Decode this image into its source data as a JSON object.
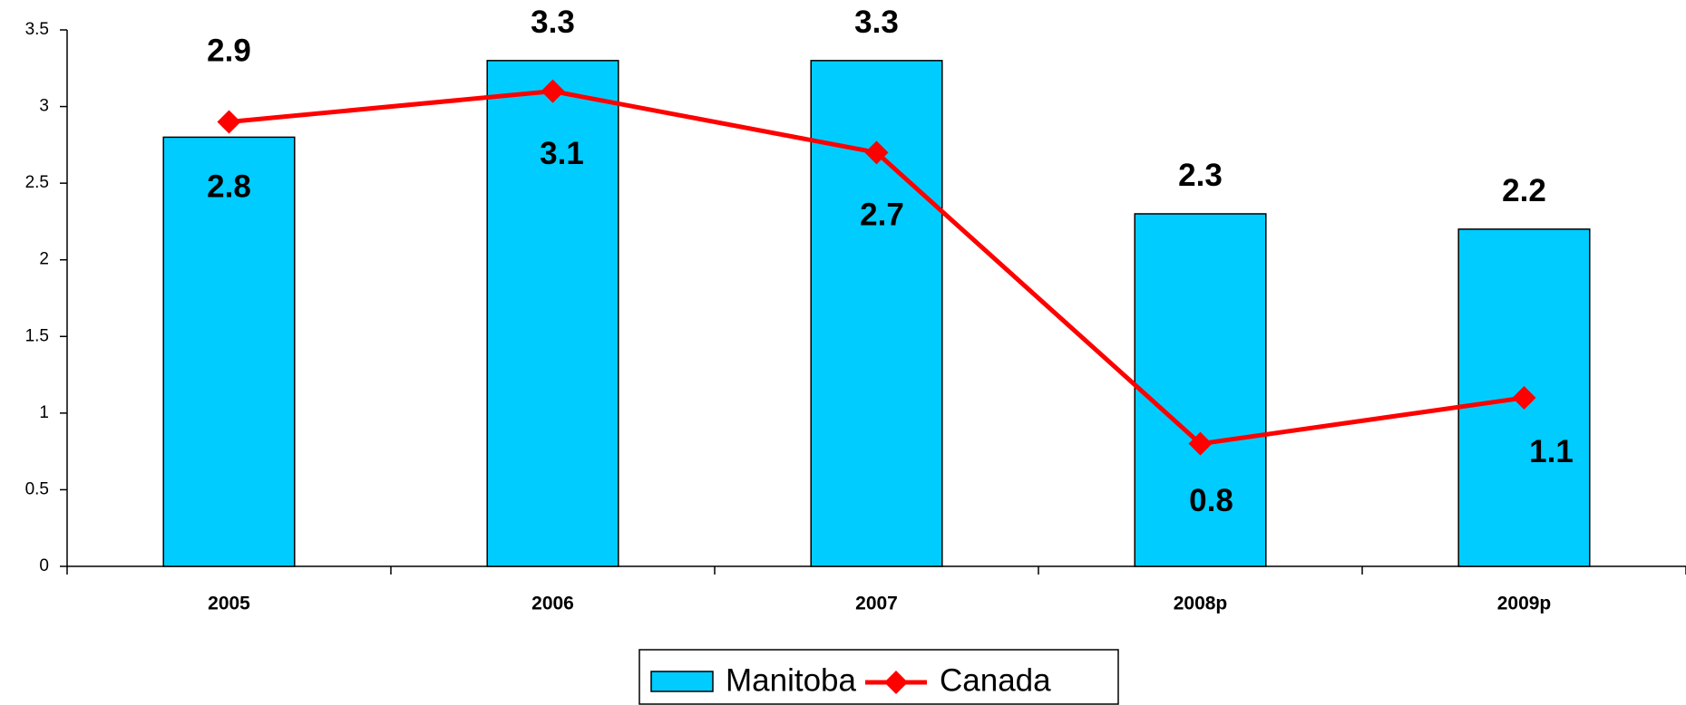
{
  "chart_data": {
    "type": "bar_line",
    "categories": [
      "2005",
      "2006",
      "2007",
      "2008p",
      "2009p"
    ],
    "series": [
      {
        "name": "Manitoba",
        "type": "bar",
        "color": "#00ccff",
        "values": [
          2.8,
          3.3,
          3.3,
          2.3,
          2.2
        ]
      },
      {
        "name": "Canada",
        "type": "line",
        "color": "#ff0000",
        "values": [
          2.9,
          3.1,
          2.7,
          0.8,
          1.1
        ]
      }
    ],
    "ylim": [
      0,
      3.5
    ],
    "yticks": [
      0,
      0.5,
      1,
      1.5,
      2,
      2.5,
      3,
      3.5
    ],
    "legend": "bottom"
  }
}
